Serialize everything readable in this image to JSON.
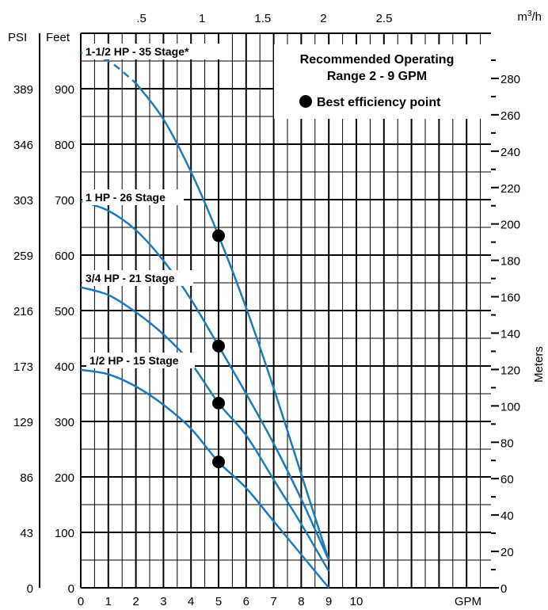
{
  "chart_data": {
    "type": "line",
    "x_primary": {
      "label": "GPM",
      "range": [
        0,
        9
      ],
      "ticks": [
        "0",
        "1",
        "2",
        "3",
        "4",
        "5",
        "6",
        "7",
        "8",
        "9",
        "10"
      ]
    },
    "x_secondary": {
      "label_base": "m",
      "label_sup": "3",
      "label_tail": "/h",
      "ticks": [
        ".5",
        "1",
        "1.5",
        "2",
        "2.5"
      ]
    },
    "y_feet": {
      "label": "Feet",
      "range": [
        0,
        1000
      ],
      "ticks": [
        "0",
        "100",
        "200",
        "300",
        "400",
        "500",
        "600",
        "700",
        "800",
        "900"
      ]
    },
    "y_psi": {
      "label": "PSI",
      "ticks": [
        "0",
        "43",
        "86",
        "129",
        "173",
        "216",
        "259",
        "303",
        "346",
        "389"
      ]
    },
    "y_meters": {
      "label": "Meters",
      "ticks": [
        "0",
        "20",
        "40",
        "60",
        "80",
        "100",
        "120",
        "140",
        "160",
        "180",
        "200",
        "220",
        "240",
        "260",
        "280"
      ]
    },
    "legend": {
      "title_line1": "Recommended Operating",
      "title_line2": "Range 2 - 9 GPM",
      "bep_label": "Best efficiency point"
    },
    "line_color": "#1a7bbf",
    "series": [
      {
        "name": "1-1/2 HP - 35 Stage*",
        "dashed_until_x": 2,
        "x": [
          0,
          1,
          2,
          3,
          4,
          5,
          6,
          7,
          8,
          9
        ],
        "y": [
          965,
          950,
          910,
          845,
          750,
          635,
          505,
          360,
          205,
          50
        ],
        "bep": [
          5,
          635
        ]
      },
      {
        "name": "1 HP - 26 Stage",
        "x": [
          0,
          1,
          2,
          3,
          4,
          5,
          6,
          7,
          8,
          9
        ],
        "y": [
          697,
          680,
          645,
          590,
          520,
          436,
          350,
          260,
          160,
          50
        ],
        "bep": [
          5,
          436
        ]
      },
      {
        "name": "3/4 HP - 21 Stage",
        "x": [
          0,
          1,
          2,
          3,
          4,
          5,
          6,
          7,
          8,
          9
        ],
        "y": [
          542,
          528,
          497,
          457,
          405,
          333,
          275,
          195,
          115,
          30
        ],
        "bep": [
          5,
          333
        ]
      },
      {
        "name": "1/2 HP - 15 Stage",
        "x": [
          0,
          1,
          2,
          3,
          4,
          5,
          6,
          7,
          8,
          9
        ],
        "y": [
          393,
          385,
          363,
          330,
          287,
          227,
          180,
          120,
          60,
          0
        ],
        "bep": [
          5,
          227
        ]
      }
    ]
  }
}
